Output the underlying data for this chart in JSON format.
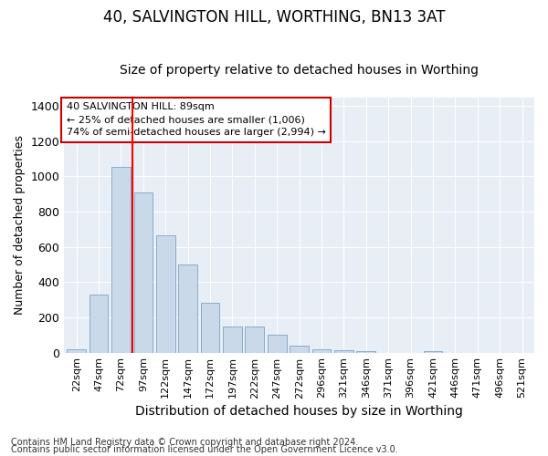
{
  "title1": "40, SALVINGTON HILL, WORTHING, BN13 3AT",
  "title2": "Size of property relative to detached houses in Worthing",
  "xlabel": "Distribution of detached houses by size in Worthing",
  "ylabel": "Number of detached properties",
  "categories": [
    "22sqm",
    "47sqm",
    "72sqm",
    "97sqm",
    "122sqm",
    "147sqm",
    "172sqm",
    "197sqm",
    "222sqm",
    "247sqm",
    "272sqm",
    "296sqm",
    "321sqm",
    "346sqm",
    "371sqm",
    "396sqm",
    "421sqm",
    "446sqm",
    "471sqm",
    "496sqm",
    "521sqm"
  ],
  "values": [
    18,
    330,
    1055,
    910,
    665,
    500,
    280,
    148,
    148,
    100,
    40,
    20,
    15,
    10,
    0,
    0,
    10,
    0,
    0,
    0,
    0
  ],
  "bar_color": "#c9d9ea",
  "bar_edge_color": "#7ba3c5",
  "red_line_x": 3.0,
  "ylim": [
    0,
    1450
  ],
  "yticks": [
    0,
    200,
    400,
    600,
    800,
    1000,
    1200,
    1400
  ],
  "annotation_text": "40 SALVINGTON HILL: 89sqm\n← 25% of detached houses are smaller (1,006)\n74% of semi-detached houses are larger (2,994) →",
  "annotation_box_facecolor": "#ffffff",
  "annotation_box_edgecolor": "#cc0000",
  "footer1": "Contains HM Land Registry data © Crown copyright and database right 2024.",
  "footer2": "Contains public sector information licensed under the Open Government Licence v3.0.",
  "plot_bg_color": "#e8eef5",
  "fig_bg_color": "#ffffff",
  "grid_color": "#ffffff",
  "title1_fontsize": 12,
  "title2_fontsize": 10,
  "xlabel_fontsize": 10,
  "ylabel_fontsize": 9,
  "xtick_fontsize": 8,
  "ytick_fontsize": 9,
  "footer_fontsize": 7
}
